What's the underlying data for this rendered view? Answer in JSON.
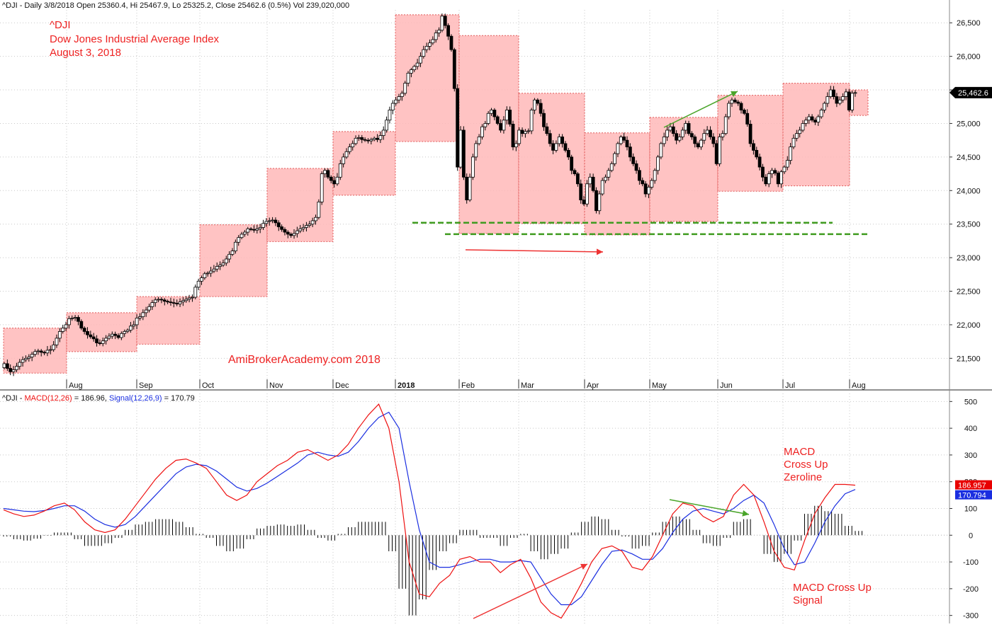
{
  "header": {
    "price_line": "^DJI - Daily 3/8/2018 Open 25360.4, Hi 25467.9, Lo 25325.2, Close 25462.6 (0.5%) Vol 239,020,000",
    "macd_prefix": "^DJI - ",
    "macd_label": "MACD(12,26)",
    "macd_value": " = 186.96, ",
    "signal_label": "Signal(12,26,9)",
    "signal_value": " = 170.79"
  },
  "annotations": {
    "symbol": "^DJI",
    "index_name": "Dow Jones Industrial Average Index",
    "date": "August 3, 2018",
    "watermark": "AmiBrokerAcademy.com  2018",
    "macd_cross_zero_1": "MACD",
    "macd_cross_zero_2": "Cross Up",
    "macd_cross_zero_3": "Zeroline",
    "macd_cross_signal_1": "MACD Cross Up",
    "macd_cross_signal_2": "Signal"
  },
  "colors": {
    "up_candle": "#ffffff",
    "down_candle": "#000000",
    "box_fill": "#ffb8b8",
    "box_border": "#e05a5a",
    "macd_line": "#ee1111",
    "signal_line": "#1a2ee0",
    "support_line": "#3f9b1f",
    "arrow_red": "#ee3333",
    "arrow_green": "#4aa52a",
    "annotation_text": "#ee2222",
    "watermark_text": "#e02020"
  },
  "chart_data": [
    {
      "type": "candlestick",
      "title": "",
      "ylim": [
        21050,
        26650
      ],
      "y_ticks": [
        21500,
        22000,
        22500,
        23000,
        23500,
        24000,
        24500,
        25000,
        25500,
        26000,
        26500
      ],
      "y_tick_labels": [
        "21,500",
        "22,000",
        "22,500",
        "23,000",
        "23,500",
        "24,000",
        "24,500",
        "25,000",
        "25,500",
        "26,000",
        "26,500"
      ],
      "x_tick_labels": [
        "Aug",
        "Sep",
        "Oct",
        "Nov",
        "Dec",
        "2018",
        "Feb",
        "Mar",
        "Apr",
        "May",
        "Jun",
        "Jul",
        "Aug"
      ],
      "last_price_label": "25,462.6",
      "monthly_ranges": [
        {
          "month": "Jul 2017",
          "low": 21280,
          "high": 21950
        },
        {
          "month": "Aug 2017",
          "low": 21600,
          "high": 22180
        },
        {
          "month": "Sep 2017",
          "low": 21710,
          "high": 22420
        },
        {
          "month": "Oct 2017",
          "low": 22420,
          "high": 23490
        },
        {
          "month": "Nov 2017",
          "low": 23240,
          "high": 24330
        },
        {
          "month": "Dec 2017",
          "low": 23930,
          "high": 24880
        },
        {
          "month": "Jan 2018",
          "low": 24730,
          "high": 26620
        },
        {
          "month": "Feb 2018",
          "low": 23360,
          "high": 26310
        },
        {
          "month": "Mar 2018",
          "low": 23510,
          "high": 25450
        },
        {
          "month": "Apr 2018",
          "low": 23340,
          "high": 24860
        },
        {
          "month": "May 2018",
          "low": 23540,
          "high": 25090
        },
        {
          "month": "Jun 2018",
          "low": 23990,
          "high": 25420
        },
        {
          "month": "Jul 2018",
          "low": 24070,
          "high": 25600
        },
        {
          "month": "Aug 2018",
          "low": 25120,
          "high": 25500
        }
      ],
      "closes": [
        21420,
        21350,
        21300,
        21330,
        21380,
        21440,
        21480,
        21500,
        21520,
        21560,
        21600,
        21610,
        21590,
        21580,
        21620,
        21630,
        21700,
        21800,
        21900,
        21950,
        22000,
        22090,
        22100,
        22110,
        22050,
        21950,
        21900,
        21850,
        21820,
        21790,
        21730,
        21720,
        21760,
        21800,
        21830,
        21860,
        21840,
        21810,
        21870,
        21900,
        21920,
        21980,
        22000,
        22100,
        22120,
        22180,
        22220,
        22270,
        22330,
        22370,
        22380,
        22370,
        22350,
        22340,
        22330,
        22320,
        22310,
        22340,
        22360,
        22380,
        22400,
        22410,
        22560,
        22650,
        22700,
        22760,
        22770,
        22800,
        22830,
        22870,
        22890,
        22920,
        22980,
        23050,
        23100,
        23230,
        23300,
        23350,
        23380,
        23430,
        23420,
        23410,
        23430,
        23450,
        23510,
        23540,
        23550,
        23560,
        23520,
        23460,
        23420,
        23380,
        23350,
        23330,
        23360,
        23400,
        23430,
        23450,
        23480,
        23500,
        23550,
        23600,
        23830,
        24250,
        24300,
        24200,
        24150,
        24100,
        24200,
        24400,
        24500,
        24580,
        24650,
        24700,
        24780,
        24790,
        24760,
        24750,
        24740,
        24760,
        24780,
        24760,
        24820,
        24900,
        25050,
        25200,
        25300,
        25350,
        25400,
        25450,
        25600,
        25750,
        25800,
        25850,
        25900,
        26000,
        26100,
        26150,
        26200,
        26250,
        26350,
        26390,
        26600,
        26460,
        26300,
        26100,
        25520,
        24350,
        24900,
        24200,
        23860,
        24200,
        24500,
        24700,
        24800,
        24950,
        25000,
        25150,
        25200,
        25100,
        25000,
        24900,
        25050,
        25200,
        24990,
        24650,
        24700,
        24900,
        24850,
        24880,
        24890,
        25200,
        25350,
        25300,
        25150,
        24950,
        24850,
        24700,
        24600,
        24700,
        24800,
        24700,
        24600,
        24500,
        24300,
        24250,
        24100,
        23860,
        23800,
        24100,
        24200,
        24000,
        23700,
        23950,
        24150,
        24200,
        24300,
        24400,
        24550,
        24700,
        24800,
        24750,
        24650,
        24500,
        24400,
        24300,
        24150,
        24100,
        23950,
        24050,
        24150,
        24300,
        24500,
        24700,
        24800,
        24900,
        24950,
        24850,
        24750,
        24800,
        24900,
        25000,
        24850,
        24800,
        24700,
        24650,
        24750,
        24850,
        24900,
        24800,
        24700,
        24400,
        24800,
        24850,
        25100,
        25300,
        25350,
        25320,
        25300,
        25200,
        25150,
        24990,
        24700,
        24600,
        24500,
        24350,
        24200,
        24100,
        24250,
        24300,
        24260,
        24100,
        24280,
        24350,
        24450,
        24650,
        24780,
        24850,
        24900,
        25000,
        25050,
        25100,
        25050,
        25020,
        25100,
        25200,
        25300,
        25400,
        25500,
        25400,
        25300,
        25350,
        25400,
        25470,
        25200,
        25450,
        25460
      ],
      "support_lines": [
        23520,
        23350
      ]
    },
    {
      "type": "line",
      "title": "",
      "ylim": [
        -330,
        530
      ],
      "y_ticks": [
        -300,
        -200,
        -100,
        0,
        100,
        200,
        300,
        400,
        500
      ],
      "y_tick_labels": [
        "-300",
        "-200",
        "-100",
        "0",
        "100",
        "200",
        "300",
        "400",
        "500"
      ],
      "series": [
        {
          "name": "MACD(12,26)",
          "last_label": "186.957",
          "values": [
            95,
            80,
            70,
            75,
            90,
            110,
            120,
            95,
            50,
            20,
            10,
            20,
            60,
            110,
            160,
            210,
            250,
            280,
            285,
            270,
            250,
            200,
            150,
            130,
            150,
            200,
            230,
            260,
            280,
            310,
            320,
            300,
            280,
            300,
            340,
            400,
            450,
            490,
            400,
            200,
            -100,
            -220,
            -230,
            -180,
            -150,
            -90,
            -80,
            -100,
            -100,
            -140,
            -110,
            -90,
            -160,
            -250,
            -290,
            -310,
            -250,
            -180,
            -100,
            -50,
            -40,
            -60,
            -120,
            -130,
            -80,
            0,
            80,
            120,
            110,
            70,
            50,
            70,
            150,
            190,
            150,
            50,
            -60,
            -120,
            -130,
            -20,
            80,
            140,
            190,
            190,
            187
          ]
        },
        {
          "name": "Signal(12,26,9)",
          "last_label": "170.794",
          "values": [
            100,
            95,
            90,
            88,
            92,
            100,
            110,
            110,
            90,
            60,
            40,
            30,
            40,
            70,
            110,
            150,
            190,
            230,
            255,
            265,
            260,
            240,
            210,
            180,
            165,
            175,
            195,
            220,
            245,
            270,
            300,
            310,
            300,
            295,
            310,
            350,
            400,
            440,
            460,
            400,
            200,
            20,
            -100,
            -120,
            -120,
            -110,
            -100,
            -90,
            -90,
            -100,
            -100,
            -95,
            -100,
            -160,
            -220,
            -260,
            -260,
            -230,
            -170,
            -110,
            -60,
            -55,
            -70,
            -90,
            -90,
            -50,
            10,
            60,
            90,
            100,
            90,
            80,
            100,
            130,
            150,
            120,
            40,
            -50,
            -110,
            -100,
            -30,
            50,
            110,
            155,
            171
          ]
        }
      ],
      "arrows": "red arrow up (MACD), green arrow down (MACD)"
    }
  ]
}
